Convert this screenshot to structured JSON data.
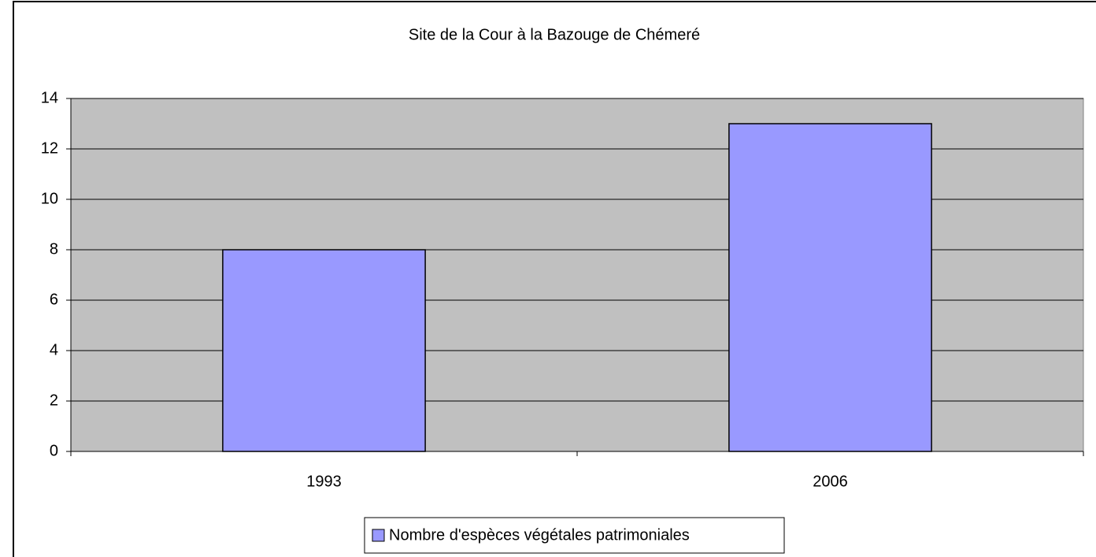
{
  "chart_data": {
    "type": "bar",
    "title": "Site de la Cour à la Bazouge de Chémeré",
    "categories": [
      "1993",
      "2006"
    ],
    "series": [
      {
        "name": "Nombre d'espèces végétales patrimoniales",
        "color": "#9999ff",
        "values": [
          8,
          13
        ]
      }
    ],
    "ylim": [
      0,
      14
    ],
    "yticks": [
      0,
      2,
      4,
      6,
      8,
      10,
      12,
      14
    ],
    "grid": true,
    "legend": "bottom"
  }
}
